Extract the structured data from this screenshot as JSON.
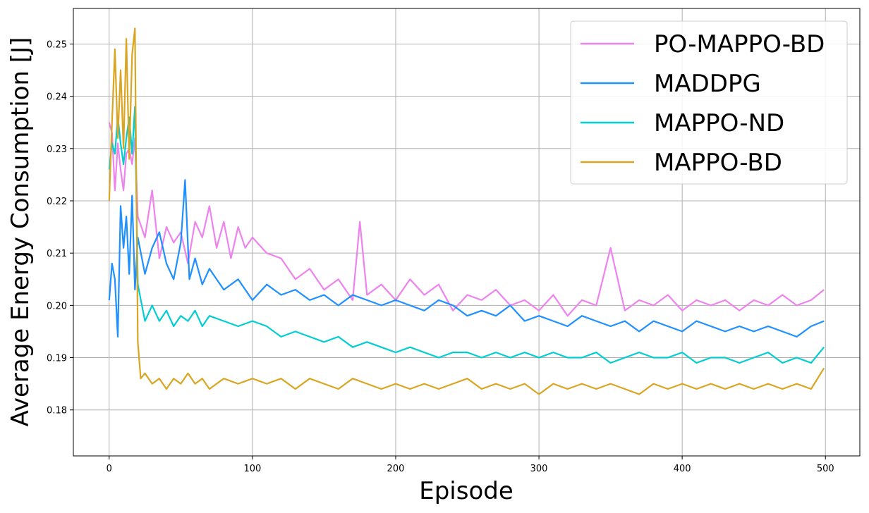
{
  "chart_data": {
    "type": "line",
    "title": "",
    "xlabel": "Episode",
    "ylabel": "Average Energy Consumption [J]",
    "xlim": [
      -25,
      524
    ],
    "ylim": [
      0.1712,
      0.2568
    ],
    "xticks": [
      0,
      100,
      200,
      300,
      400,
      500
    ],
    "yticks": [
      0.18,
      0.19,
      0.2,
      0.21,
      0.22,
      0.23,
      0.24,
      0.25
    ],
    "ytick_labels": [
      "0.18",
      "0.19",
      "0.20",
      "0.21",
      "0.22",
      "0.23",
      "0.24",
      "0.25"
    ],
    "grid": true,
    "legend_position": "top-right",
    "series": [
      {
        "name": "PO-MAPPO-BD",
        "color": "#ee82ee",
        "x": [
          0,
          2,
          4,
          6,
          8,
          10,
          12,
          14,
          16,
          18,
          20,
          25,
          30,
          35,
          40,
          45,
          50,
          55,
          60,
          65,
          70,
          75,
          80,
          85,
          90,
          95,
          100,
          110,
          120,
          130,
          140,
          150,
          160,
          170,
          175,
          180,
          190,
          200,
          210,
          220,
          230,
          240,
          250,
          260,
          270,
          280,
          290,
          300,
          310,
          320,
          330,
          340,
          350,
          360,
          370,
          380,
          390,
          400,
          410,
          420,
          430,
          440,
          450,
          460,
          470,
          480,
          490,
          499
        ],
        "y": [
          0.235,
          0.233,
          0.222,
          0.231,
          0.226,
          0.222,
          0.229,
          0.23,
          0.227,
          0.232,
          0.217,
          0.213,
          0.222,
          0.209,
          0.215,
          0.212,
          0.214,
          0.208,
          0.216,
          0.213,
          0.219,
          0.211,
          0.216,
          0.209,
          0.215,
          0.211,
          0.213,
          0.21,
          0.209,
          0.205,
          0.207,
          0.203,
          0.205,
          0.201,
          0.216,
          0.202,
          0.204,
          0.201,
          0.205,
          0.202,
          0.204,
          0.199,
          0.202,
          0.201,
          0.203,
          0.2,
          0.201,
          0.199,
          0.202,
          0.198,
          0.201,
          0.2,
          0.211,
          0.199,
          0.201,
          0.2,
          0.202,
          0.199,
          0.201,
          0.2,
          0.201,
          0.199,
          0.201,
          0.2,
          0.202,
          0.2,
          0.201,
          0.203
        ]
      },
      {
        "name": "MADDPG",
        "color": "#1e90ff",
        "x": [
          0,
          2,
          4,
          6,
          8,
          10,
          12,
          14,
          16,
          18,
          20,
          25,
          30,
          35,
          40,
          45,
          50,
          53,
          56,
          60,
          65,
          70,
          80,
          90,
          100,
          110,
          120,
          130,
          140,
          150,
          160,
          170,
          180,
          190,
          200,
          210,
          220,
          230,
          240,
          250,
          260,
          270,
          280,
          290,
          300,
          310,
          320,
          330,
          340,
          350,
          360,
          370,
          380,
          390,
          400,
          410,
          420,
          430,
          440,
          450,
          460,
          470,
          480,
          490,
          499
        ],
        "y": [
          0.201,
          0.208,
          0.205,
          0.194,
          0.219,
          0.211,
          0.217,
          0.206,
          0.221,
          0.203,
          0.213,
          0.206,
          0.211,
          0.214,
          0.208,
          0.205,
          0.212,
          0.224,
          0.205,
          0.209,
          0.204,
          0.207,
          0.203,
          0.205,
          0.201,
          0.204,
          0.202,
          0.203,
          0.201,
          0.202,
          0.2,
          0.202,
          0.201,
          0.2,
          0.201,
          0.2,
          0.199,
          0.201,
          0.2,
          0.198,
          0.199,
          0.198,
          0.2,
          0.197,
          0.198,
          0.197,
          0.196,
          0.198,
          0.197,
          0.196,
          0.197,
          0.195,
          0.197,
          0.196,
          0.195,
          0.197,
          0.196,
          0.195,
          0.196,
          0.195,
          0.196,
          0.195,
          0.194,
          0.196,
          0.197
        ]
      },
      {
        "name": "MAPPO-ND",
        "color": "#00ced1",
        "x": [
          0,
          2,
          4,
          6,
          8,
          10,
          12,
          14,
          16,
          18,
          20,
          25,
          30,
          35,
          40,
          45,
          50,
          55,
          60,
          65,
          70,
          80,
          90,
          100,
          110,
          120,
          130,
          140,
          150,
          160,
          170,
          180,
          190,
          200,
          210,
          220,
          230,
          240,
          250,
          260,
          270,
          280,
          290,
          300,
          310,
          320,
          330,
          340,
          350,
          360,
          370,
          380,
          390,
          400,
          410,
          420,
          430,
          440,
          450,
          460,
          470,
          480,
          490,
          499
        ],
        "y": [
          0.226,
          0.231,
          0.229,
          0.236,
          0.231,
          0.227,
          0.232,
          0.236,
          0.229,
          0.238,
          0.204,
          0.197,
          0.2,
          0.197,
          0.199,
          0.196,
          0.198,
          0.197,
          0.199,
          0.196,
          0.198,
          0.197,
          0.196,
          0.197,
          0.196,
          0.194,
          0.195,
          0.194,
          0.193,
          0.194,
          0.192,
          0.193,
          0.192,
          0.191,
          0.192,
          0.191,
          0.19,
          0.191,
          0.191,
          0.19,
          0.191,
          0.19,
          0.191,
          0.19,
          0.191,
          0.19,
          0.19,
          0.191,
          0.189,
          0.19,
          0.191,
          0.19,
          0.19,
          0.191,
          0.189,
          0.19,
          0.19,
          0.189,
          0.19,
          0.191,
          0.189,
          0.19,
          0.189,
          0.192
        ]
      },
      {
        "name": "MAPPO-BD",
        "color": "#daa520",
        "x": [
          0,
          2,
          4,
          6,
          8,
          10,
          12,
          14,
          16,
          18,
          20,
          22,
          25,
          30,
          35,
          40,
          45,
          50,
          55,
          60,
          65,
          70,
          80,
          90,
          100,
          110,
          120,
          130,
          140,
          150,
          160,
          170,
          180,
          190,
          200,
          210,
          220,
          230,
          240,
          250,
          260,
          270,
          280,
          290,
          300,
          310,
          320,
          330,
          340,
          350,
          360,
          370,
          380,
          390,
          400,
          410,
          420,
          430,
          440,
          450,
          460,
          470,
          480,
          490,
          499
        ],
        "y": [
          0.22,
          0.235,
          0.249,
          0.232,
          0.245,
          0.23,
          0.251,
          0.228,
          0.248,
          0.253,
          0.193,
          0.186,
          0.187,
          0.185,
          0.186,
          0.184,
          0.186,
          0.185,
          0.187,
          0.185,
          0.186,
          0.184,
          0.186,
          0.185,
          0.186,
          0.185,
          0.186,
          0.184,
          0.186,
          0.185,
          0.184,
          0.186,
          0.185,
          0.184,
          0.185,
          0.184,
          0.185,
          0.184,
          0.185,
          0.186,
          0.184,
          0.185,
          0.184,
          0.185,
          0.183,
          0.185,
          0.184,
          0.185,
          0.184,
          0.185,
          0.184,
          0.183,
          0.185,
          0.184,
          0.185,
          0.184,
          0.185,
          0.184,
          0.185,
          0.184,
          0.185,
          0.184,
          0.185,
          0.184,
          0.188
        ]
      }
    ]
  }
}
